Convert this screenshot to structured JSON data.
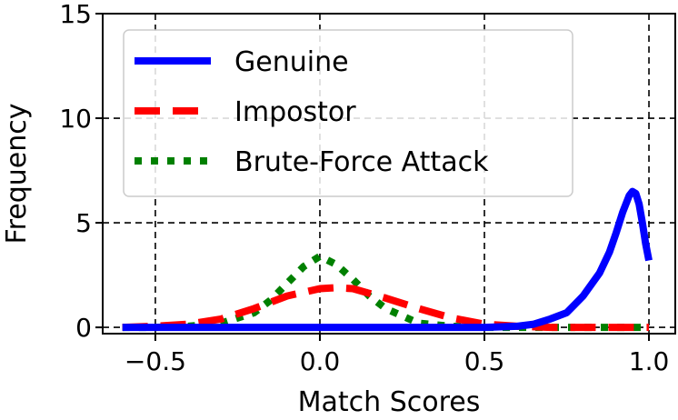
{
  "chart_data": {
    "type": "line",
    "title": "",
    "xlabel": "Match Scores",
    "ylabel": "Frequency",
    "xlim": [
      -0.66,
      1.08
    ],
    "ylim": [
      -0.3,
      15
    ],
    "xticks": [
      -0.5,
      0.0,
      0.5,
      1.0
    ],
    "xtick_labels": [
      "−0.5",
      "0.0",
      "0.5",
      "1.0"
    ],
    "yticks": [
      0,
      5,
      10,
      15
    ],
    "ytick_labels": [
      "0",
      "5",
      "10",
      "15"
    ],
    "grid": true,
    "legend_position": "upper-left",
    "series": [
      {
        "name": "Genuine",
        "color": "#0000ff",
        "style": "solid",
        "x": [
          -0.6,
          -0.5,
          -0.3,
          0.0,
          0.3,
          0.5,
          0.6,
          0.65,
          0.7,
          0.75,
          0.8,
          0.85,
          0.88,
          0.9,
          0.92,
          0.94,
          0.95,
          0.96,
          0.97,
          0.98,
          0.99,
          1.0
        ],
        "y": [
          0,
          0,
          0,
          0,
          0,
          0,
          0.05,
          0.15,
          0.4,
          0.7,
          1.5,
          2.6,
          3.6,
          4.5,
          5.5,
          6.3,
          6.5,
          6.4,
          5.9,
          5.0,
          4.0,
          3.2
        ]
      },
      {
        "name": "Impostor",
        "color": "#ff0000",
        "style": "dashed",
        "x": [
          -0.6,
          -0.5,
          -0.4,
          -0.3,
          -0.2,
          -0.1,
          0.0,
          0.05,
          0.1,
          0.2,
          0.3,
          0.4,
          0.5,
          0.6,
          0.7,
          0.8,
          0.9,
          1.0
        ],
        "y": [
          0,
          0.05,
          0.15,
          0.4,
          0.9,
          1.5,
          1.85,
          1.9,
          1.85,
          1.4,
          0.9,
          0.45,
          0.15,
          0.05,
          0,
          0,
          0,
          0
        ]
      },
      {
        "name": "Brute-Force Attack",
        "color": "#008000",
        "style": "dotted",
        "x": [
          -0.6,
          -0.5,
          -0.4,
          -0.3,
          -0.2,
          -0.15,
          -0.1,
          -0.05,
          0.0,
          0.05,
          0.1,
          0.15,
          0.2,
          0.3,
          0.4,
          0.5,
          0.6,
          0.8,
          1.0
        ],
        "y": [
          0,
          0,
          0.05,
          0.2,
          0.7,
          1.3,
          2.1,
          2.9,
          3.4,
          3.0,
          2.3,
          1.5,
          0.9,
          0.2,
          0.05,
          0,
          0,
          0,
          0
        ]
      }
    ]
  }
}
